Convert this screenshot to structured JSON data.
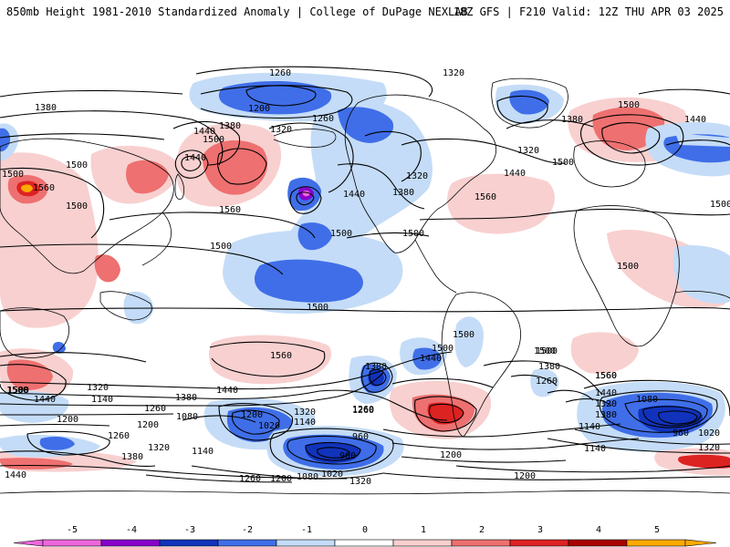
{
  "header": {
    "title": "850mb Height 1981-2010 Standardized Anomaly | College of DuPage NEXLAB",
    "run": "18Z GFS | F210 Valid: 12Z THU APR 03 2025"
  },
  "colors": {
    "neg5": "#ee66dd",
    "neg4": "#8800cc",
    "neg3": "#1133bb",
    "neg2": "#3f6ee8",
    "neg1": "#c4dcf7",
    "neutral": "#ffffff",
    "pos1": "#f8d0d0",
    "pos2": "#ee7070",
    "pos3": "#dd2222",
    "pos4": "#aa0000",
    "pos5": "#ffaa00",
    "contour": "#000000",
    "land_outline": "#000000"
  },
  "legend": {
    "ticks": [
      "-5",
      "-4",
      "-3",
      "-2",
      "-1",
      "0",
      "1",
      "2",
      "3",
      "4",
      "5"
    ]
  },
  "contour_labels": [
    {
      "t": "1260"
    },
    {
      "t": "1320"
    },
    {
      "t": "1380"
    },
    {
      "t": "1200"
    },
    {
      "t": "1260"
    },
    {
      "t": "1320"
    },
    {
      "t": "1380"
    },
    {
      "t": "1440"
    },
    {
      "t": "1500"
    },
    {
      "t": "1440"
    },
    {
      "t": "1500"
    },
    {
      "t": "1500"
    },
    {
      "t": "1560"
    },
    {
      "t": "1500"
    },
    {
      "t": "1560"
    },
    {
      "t": "1500"
    },
    {
      "t": "1320"
    },
    {
      "t": "1440"
    },
    {
      "t": "1380"
    },
    {
      "t": "1500"
    },
    {
      "t": "1500"
    },
    {
      "t": "1560"
    },
    {
      "t": "1380"
    },
    {
      "t": "1440"
    },
    {
      "t": "1500"
    },
    {
      "t": "1500"
    },
    {
      "t": "1320"
    },
    {
      "t": "1440"
    },
    {
      "t": "1500"
    },
    {
      "t": "1500"
    },
    {
      "t": "1500"
    },
    {
      "t": "1560"
    },
    {
      "t": "1440"
    },
    {
      "t": "1500"
    },
    {
      "t": "1500"
    },
    {
      "t": "1380"
    },
    {
      "t": "1440"
    },
    {
      "t": "1500"
    },
    {
      "t": "1560"
    },
    {
      "t": "1500"
    },
    {
      "t": "1440"
    },
    {
      "t": "1320"
    },
    {
      "t": "1140"
    },
    {
      "t": "1200"
    },
    {
      "t": "1380"
    },
    {
      "t": "1260"
    },
    {
      "t": "1080"
    },
    {
      "t": "1200"
    },
    {
      "t": "1020"
    },
    {
      "t": "1320"
    },
    {
      "t": "1140"
    },
    {
      "t": "1260"
    },
    {
      "t": "1200"
    },
    {
      "t": "1260"
    },
    {
      "t": "1380"
    },
    {
      "t": "1320"
    },
    {
      "t": "1140"
    },
    {
      "t": "960"
    },
    {
      "t": "900"
    },
    {
      "t": "1020"
    },
    {
      "t": "1080"
    },
    {
      "t": "1200"
    },
    {
      "t": "1260"
    },
    {
      "t": "1320"
    },
    {
      "t": "1200"
    },
    {
      "t": "1260"
    },
    {
      "t": "1500"
    },
    {
      "t": "1380"
    },
    {
      "t": "1260"
    },
    {
      "t": "1560"
    },
    {
      "t": "1440"
    },
    {
      "t": "1320"
    },
    {
      "t": "1380"
    },
    {
      "t": "1080"
    },
    {
      "t": "1140"
    },
    {
      "t": "1020"
    },
    {
      "t": "960"
    },
    {
      "t": "1140"
    },
    {
      "t": "1320"
    },
    {
      "t": "1440"
    },
    {
      "t": "1500"
    },
    {
      "t": "1200"
    }
  ]
}
